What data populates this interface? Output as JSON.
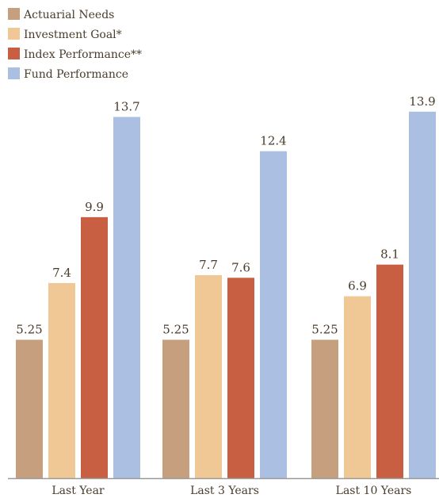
{
  "chart_data": {
    "type": "bar",
    "categories": [
      "Last Year",
      "Last 3 Years",
      "Last 10 Years"
    ],
    "series": [
      {
        "name": "Actuarial Needs",
        "color": "#c6a07e",
        "values": [
          5.25,
          5.25,
          5.25
        ],
        "labels": [
          "5.25",
          "5.25",
          "5.25"
        ]
      },
      {
        "name": "Investment Goal*",
        "color": "#efc896",
        "values": [
          7.4,
          7.7,
          6.9
        ],
        "labels": [
          "7.4",
          "7.7",
          "6.9"
        ]
      },
      {
        "name": "Index Performance**",
        "color": "#c85f42",
        "values": [
          9.9,
          7.6,
          8.1
        ],
        "labels": [
          "9.9",
          "7.6",
          "8.1"
        ]
      },
      {
        "name": "Fund Performance",
        "color": "#aabfe1",
        "values": [
          13.7,
          12.4,
          13.9
        ],
        "labels": [
          "13.7",
          "12.4",
          "13.9"
        ]
      }
    ],
    "ylim": [
      0,
      15
    ],
    "grid": false,
    "legend_position": "top-left",
    "axis_color": "#9a9a9a",
    "text_color": "#4a3c2c"
  }
}
